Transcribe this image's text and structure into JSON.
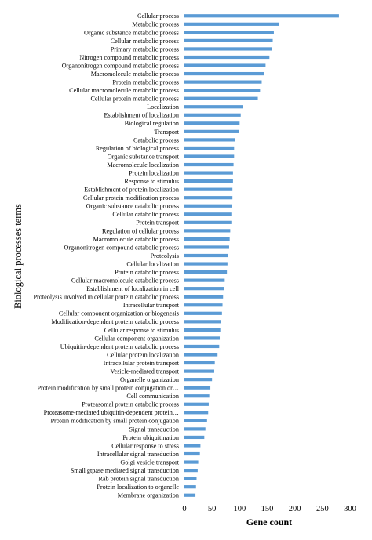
{
  "chart_data": {
    "type": "bar",
    "orientation": "horizontal",
    "xlabel": "Gene count",
    "ylabel": "Biological processes terms",
    "xlim": [
      0,
      300
    ],
    "xticks": [
      0,
      50,
      100,
      150,
      200,
      250,
      300
    ],
    "bar_color": "#5b9bd5",
    "grid": false,
    "categories": [
      "Cellular process",
      "Metabolic process",
      "Organic substance metabolic process",
      "Cellular metabolic process",
      "Primary metabolic process",
      "Nitrogen compound metabolic process",
      "Organonitrogen compound metabolic process",
      "Macromolecule metabolic process",
      "Protein metabolic process",
      "Cellular macromolecule metabolic process",
      "Cellular protein metabolic process",
      "Localization",
      "Establishment of localization",
      "Biological regulation",
      "Transport",
      "Catabolic process",
      "Regulation of biological process",
      "Organic substance transport",
      "Macromolecule localization",
      "Protein localization",
      "Response to stimulus",
      "Establishment of protein localization",
      "Cellular protein modification process",
      "Organic substance catabolic process",
      "Cellular catabolic process",
      "Protein transport",
      "Regulation of cellular process",
      "Macromolecule catabolic process",
      "Organonitrogen compound catabolic process",
      "Proteolysis",
      "Cellular localization",
      "Protein catabolic process",
      "Cellular macromolecule catabolic process",
      "Establishment of localization in cell",
      "Proteolysis involved in cellular protein catabolic process",
      "Intracellular transport",
      "Cellular component organization or biogenesis",
      "Modification-dependent protein catabolic process",
      "Cellular response to stimulus",
      "Cellular component organization",
      "Ubiquitin-dependent protein catabolic process",
      "Cellular protein localization",
      "Intracellular protein transport",
      "Vesicle-mediated transport",
      "Organelle organization",
      "Protein modification by small protein conjugation or…",
      "Cell communication",
      "Proteasomal protein catabolic process",
      "Proteasome-mediated ubiquitin-dependent protein…",
      "Protein modification by small protein conjugation",
      "Signal transduction",
      "Protein ubiquitination",
      "Cellular response to stress",
      "Intracellular signal transduction",
      "Golgi vesicle transport",
      "Small gtpase mediated signal transduction",
      "Rab protein signal transduction",
      "Protein localization to organelle",
      "Membrane organization"
    ],
    "values": [
      280,
      172,
      162,
      160,
      158,
      154,
      147,
      145,
      140,
      137,
      133,
      106,
      102,
      100,
      99,
      92,
      90,
      90,
      89,
      88,
      88,
      87,
      87,
      86,
      85,
      85,
      83,
      82,
      81,
      79,
      78,
      77,
      73,
      72,
      70,
      69,
      68,
      66,
      65,
      64,
      63,
      60,
      55,
      54,
      50,
      47,
      45,
      44,
      43,
      41,
      38,
      36,
      29,
      28,
      25,
      24,
      22,
      21,
      20
    ]
  }
}
